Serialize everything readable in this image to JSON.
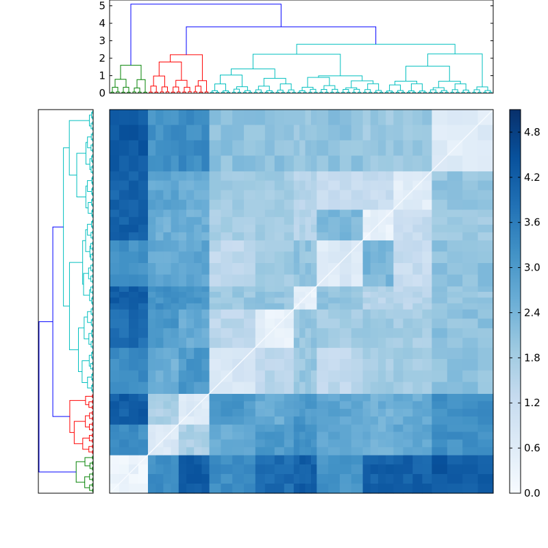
{
  "chart_data": [
    {
      "type": "dendrogram",
      "orientation": "top",
      "ylim": [
        0,
        5.3
      ],
      "yticks": [
        "0",
        "1",
        "2",
        "3",
        "4",
        "5"
      ],
      "cluster_colors": {
        "green": "#008000",
        "red": "#ff0000",
        "cyan": "#00bfbf",
        "link": "#0000ff"
      },
      "top_merges": [
        {
          "height": 5.1,
          "color": "#0000ff"
        },
        {
          "height": 3.8,
          "color": "#0000ff"
        },
        {
          "height": 2.8,
          "color": "#00bfbf"
        },
        {
          "height": 2.2,
          "color": "#ff0000"
        },
        {
          "height": 1.6,
          "color": "#008000"
        }
      ]
    },
    {
      "type": "dendrogram",
      "orientation": "left",
      "xticks": []
    },
    {
      "type": "heatmap",
      "colormap": "Blues",
      "vmin": 0.0,
      "vmax": 5.1,
      "blocks": [
        {
          "name": "green",
          "size": 0.1
        },
        {
          "name": "red-1",
          "size": 0.08
        },
        {
          "name": "red-2",
          "size": 0.08
        },
        {
          "name": "cyan-1",
          "size": 0.12
        },
        {
          "name": "cyan-2",
          "size": 0.1
        },
        {
          "name": "cyan-3",
          "size": 0.06
        },
        {
          "name": "cyan-4",
          "size": 0.12
        },
        {
          "name": "cyan-5",
          "size": 0.08
        },
        {
          "name": "cyan-6",
          "size": 0.1
        },
        {
          "name": "cyan-7",
          "size": 0.16
        }
      ]
    },
    {
      "type": "colorbar",
      "colormap": "Blues",
      "range": [
        0.0,
        5.1
      ],
      "ticks": [
        "0.0",
        "0.6",
        "1.2",
        "1.8",
        "2.4",
        "3.0",
        "3.6",
        "4.2",
        "4.8"
      ]
    }
  ]
}
